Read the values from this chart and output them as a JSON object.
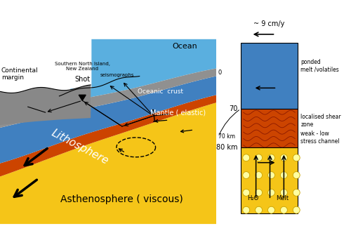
{
  "bg_color": "#ffffff",
  "ocean_color": "#5AAFDF",
  "lithosphere_color": "#4080C0",
  "oceanic_crust_color": "#909090",
  "asthenosphere_color": "#F5C518",
  "red_layer_color": "#CC4400",
  "labels": {
    "continental_margin": "Continental\nmargin",
    "shot": "Shot",
    "shot_sub": "Southern North Island,\nNew Zealand",
    "seismographs": "seismographs",
    "ocean": "Ocean",
    "oceanic_crust": "Oceanic  crust",
    "mantle_elastic": "Mantle ( elastic)",
    "lithosphere": "Lithosphere",
    "asthenosphere": "Asthenosphere ( viscous)",
    "speed": "~ 9 cm/y",
    "depth_70": "70",
    "depth_80": "80 km",
    "depth_70km": "70 km",
    "ponded": "ponded\nmelt /volatiles",
    "localised": "localised shear\nzone",
    "weak": "weak - low\nstress channel",
    "h2o": "H₂O",
    "melt": "Melt",
    "zero": "0"
  },
  "colors": {
    "right_panel_blue": "#4080C0",
    "right_panel_red": "#CC4400",
    "right_panel_yellow": "#F5C518",
    "land_gray": "#A8A8A8",
    "dark_land": "#888888"
  }
}
